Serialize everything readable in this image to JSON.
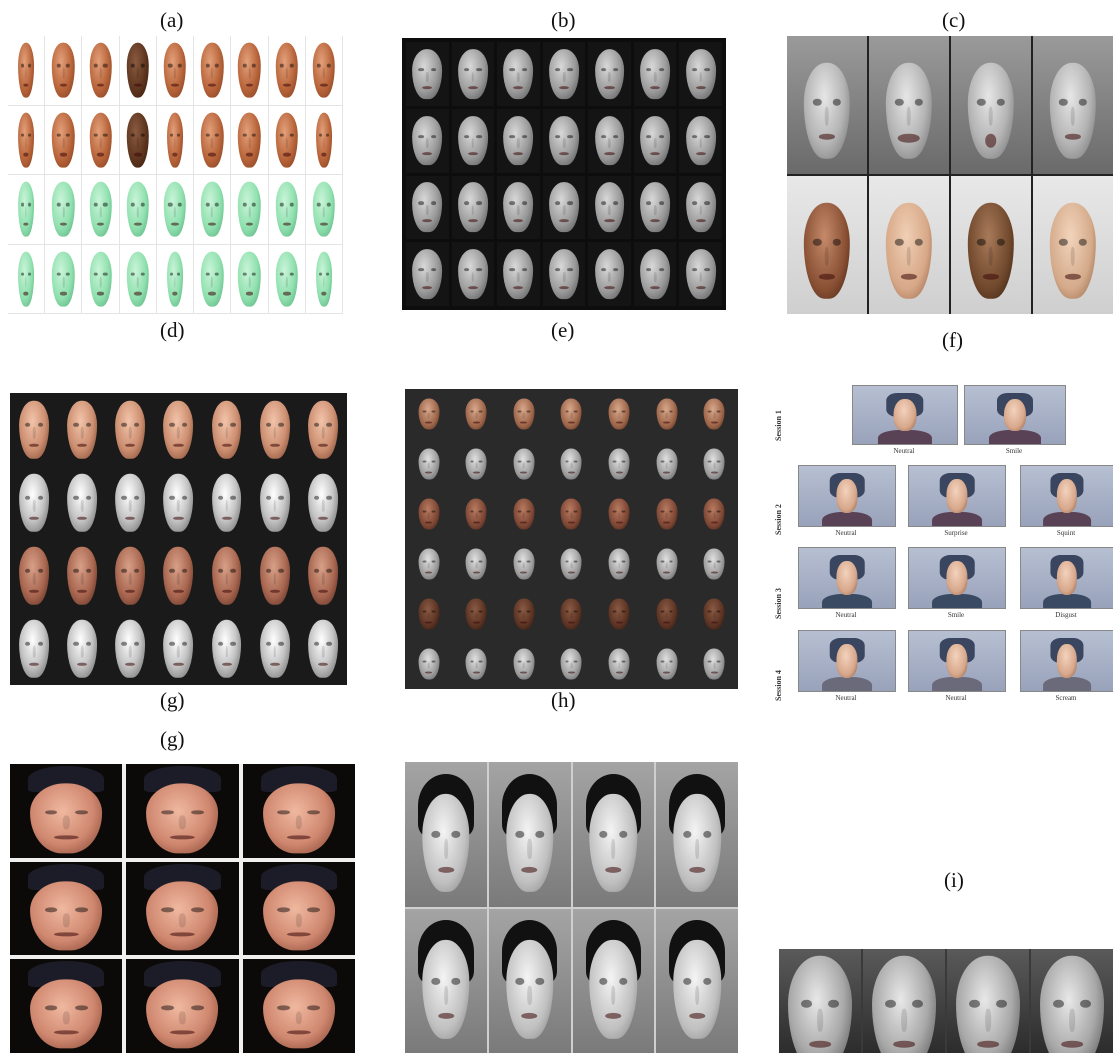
{
  "labels": {
    "a": "(a)",
    "b": "(b)",
    "c": "(c)",
    "d": "(d)",
    "e": "(e)",
    "f": "(f)",
    "g1": "(g)",
    "h": "(h)",
    "g2": "(g)",
    "i": "(i)"
  },
  "panel_f": {
    "sessions": [
      "Session 1",
      "Session 2",
      "Session 3",
      "Session 4"
    ],
    "captions": {
      "s1": [
        "Neutral",
        "Smile"
      ],
      "s2": [
        "Neutral",
        "Surprise",
        "Squint"
      ],
      "s3": [
        "Neutral",
        "Smile",
        "Disgust"
      ],
      "s4": [
        "Neutral",
        "Neutral",
        "Scream"
      ]
    }
  },
  "colors": {
    "background": "#ffffff",
    "label_text": "#111111"
  }
}
